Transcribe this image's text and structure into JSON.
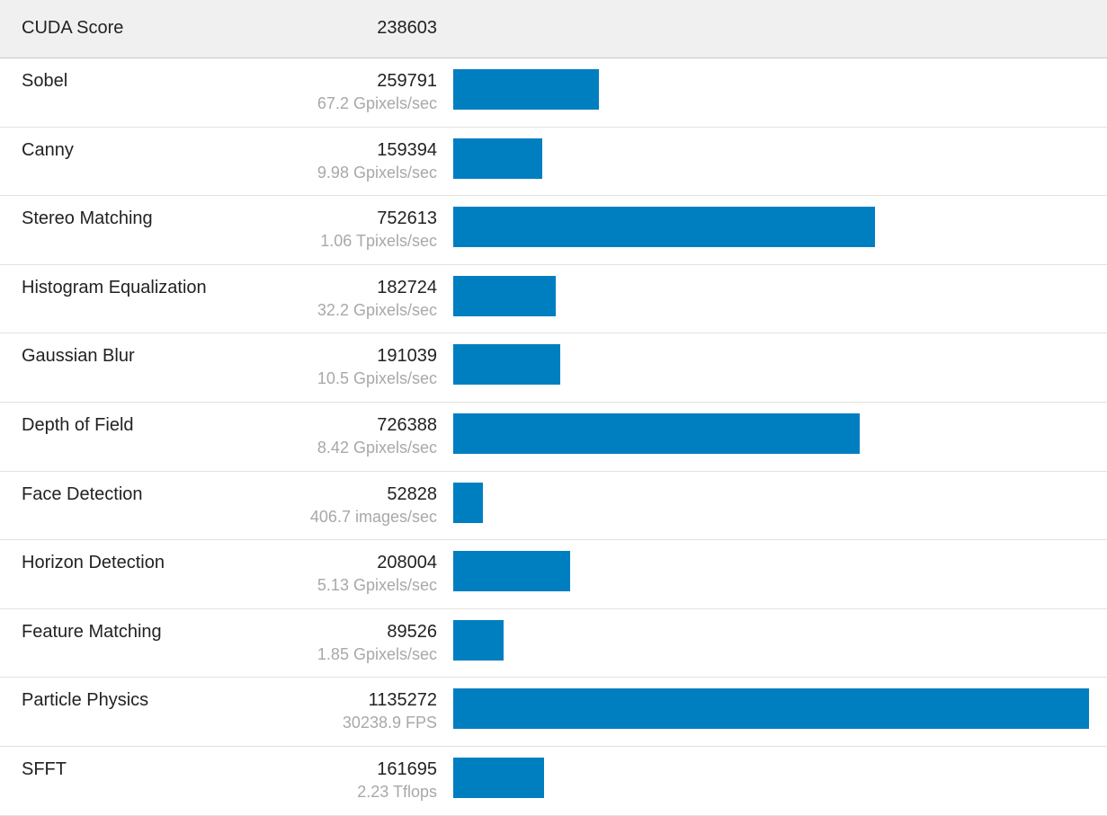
{
  "header": {
    "name": "CUDA Score",
    "score": "238603"
  },
  "bar_color": "#007fc0",
  "rows": [
    {
      "name": "Sobel",
      "score": 259791,
      "unit": "67.2 Gpixels/sec"
    },
    {
      "name": "Canny",
      "score": 159394,
      "unit": "9.98 Gpixels/sec"
    },
    {
      "name": "Stereo Matching",
      "score": 752613,
      "unit": "1.06 Tpixels/sec"
    },
    {
      "name": "Histogram Equalization",
      "score": 182724,
      "unit": "32.2 Gpixels/sec"
    },
    {
      "name": "Gaussian Blur",
      "score": 191039,
      "unit": "10.5 Gpixels/sec"
    },
    {
      "name": "Depth of Field",
      "score": 726388,
      "unit": "8.42 Gpixels/sec"
    },
    {
      "name": "Face Detection",
      "score": 52828,
      "unit": "406.7 images/sec"
    },
    {
      "name": "Horizon Detection",
      "score": 208004,
      "unit": "5.13 Gpixels/sec"
    },
    {
      "name": "Feature Matching",
      "score": 89526,
      "unit": "1.85 Gpixels/sec"
    },
    {
      "name": "Particle Physics",
      "score": 1135272,
      "unit": "30238.9 FPS"
    },
    {
      "name": "SFFT",
      "score": 161695,
      "unit": "2.23 Tflops"
    }
  ]
}
